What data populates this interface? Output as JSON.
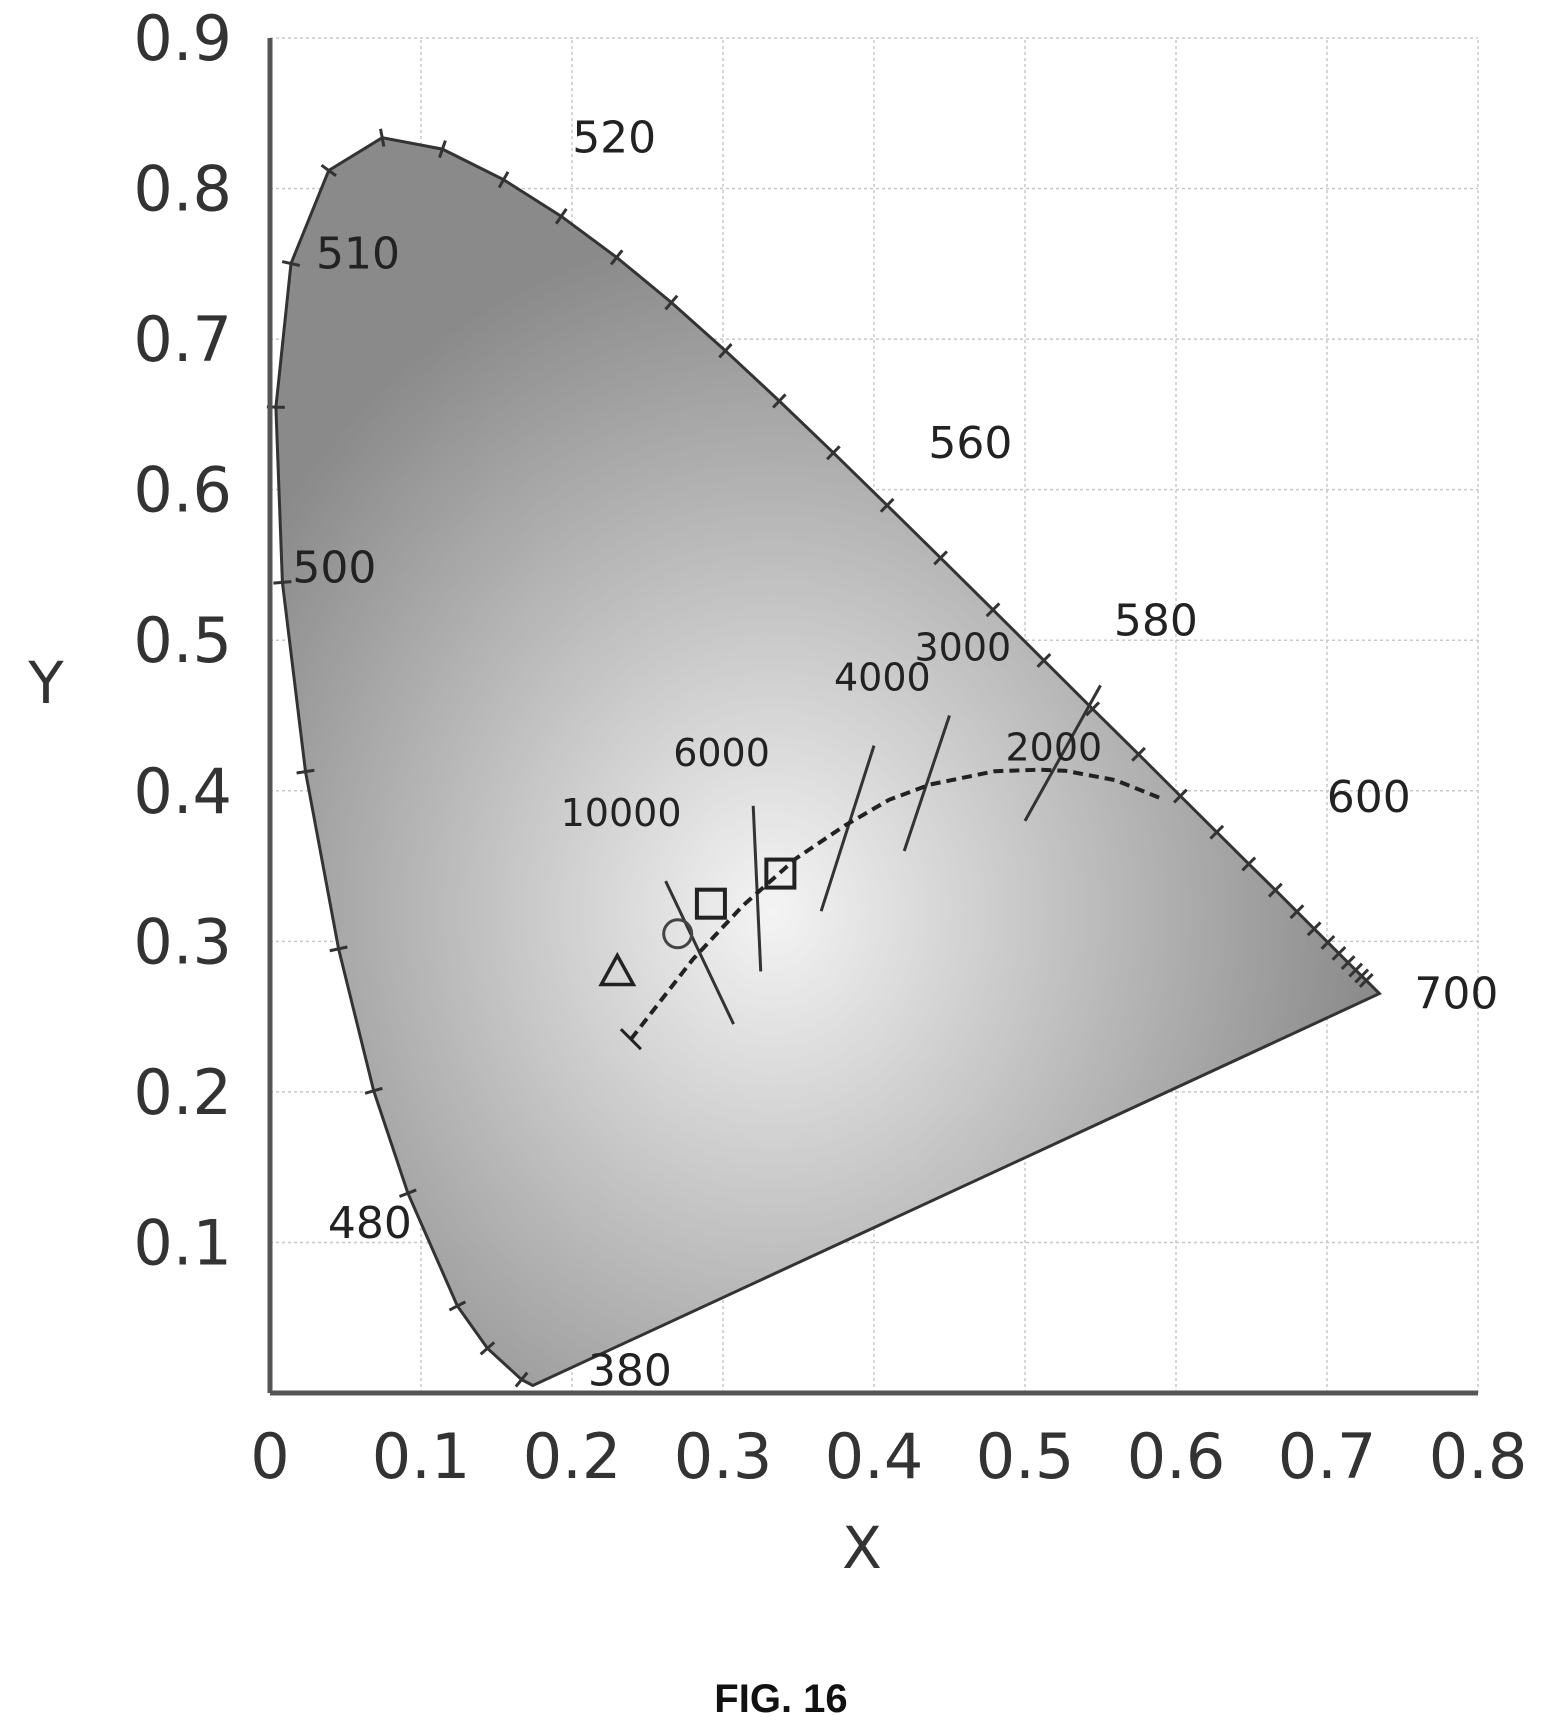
{
  "caption": "FIG. 16",
  "chart_data": {
    "type": "scatter",
    "title": "",
    "xlabel": "X",
    "ylabel": "Y",
    "xlim": [
      0,
      0.8
    ],
    "ylim": [
      0,
      0.9
    ],
    "xticks": [
      "0",
      "0.1",
      "0.2",
      "0.3",
      "0.4",
      "0.5",
      "0.6",
      "0.7",
      "0.8"
    ],
    "yticks": [
      "0.1",
      "0.2",
      "0.3",
      "0.4",
      "0.5",
      "0.6",
      "0.7",
      "0.8",
      "0.9"
    ],
    "grid": true,
    "spectral_locus": {
      "points": [
        [
          0.1741,
          0.005
        ],
        [
          0.1666,
          0.0089
        ],
        [
          0.144,
          0.0297
        ],
        [
          0.1241,
          0.0578
        ],
        [
          0.0913,
          0.1327
        ],
        [
          0.0687,
          0.2007
        ],
        [
          0.0454,
          0.295
        ],
        [
          0.0235,
          0.4127
        ],
        [
          0.0082,
          0.5384
        ],
        [
          0.0039,
          0.6548
        ],
        [
          0.0139,
          0.7502
        ],
        [
          0.0389,
          0.812
        ],
        [
          0.0743,
          0.8338
        ],
        [
          0.1142,
          0.8262
        ],
        [
          0.1547,
          0.8059
        ],
        [
          0.1929,
          0.7816
        ],
        [
          0.2296,
          0.7543
        ],
        [
          0.2658,
          0.7243
        ],
        [
          0.3016,
          0.6923
        ],
        [
          0.3373,
          0.6589
        ],
        [
          0.3731,
          0.6245
        ],
        [
          0.4087,
          0.5896
        ],
        [
          0.4441,
          0.5547
        ],
        [
          0.4788,
          0.5202
        ],
        [
          0.5125,
          0.4866
        ],
        [
          0.5448,
          0.4544
        ],
        [
          0.5752,
          0.4242
        ],
        [
          0.6029,
          0.3965
        ],
        [
          0.627,
          0.3725
        ],
        [
          0.6482,
          0.3514
        ],
        [
          0.6658,
          0.334
        ],
        [
          0.6801,
          0.3197
        ],
        [
          0.6915,
          0.3083
        ],
        [
          0.7006,
          0.2993
        ],
        [
          0.7079,
          0.292
        ],
        [
          0.714,
          0.2859
        ],
        [
          0.719,
          0.2809
        ],
        [
          0.723,
          0.277
        ],
        [
          0.726,
          0.274
        ],
        [
          0.7347,
          0.2653
        ]
      ],
      "wavelength_labels": [
        {
          "text": "520",
          "x": 0.0743,
          "y": 0.8338
        },
        {
          "text": "560",
          "x": 0.3731,
          "y": 0.6245
        },
        {
          "text": "580",
          "x": 0.5125,
          "y": 0.4866
        },
        {
          "text": "600",
          "x": 0.627,
          "y": 0.3725
        },
        {
          "text": "700",
          "x": 0.7347,
          "y": 0.2653
        },
        {
          "text": "510",
          "x": 0.0139,
          "y": 0.7502
        },
        {
          "text": "500",
          "x": 0.0082,
          "y": 0.5384
        },
        {
          "text": "480",
          "x": 0.0913,
          "y": 0.1327
        },
        {
          "text": "380",
          "x": 0.1741,
          "y": 0.005
        }
      ]
    },
    "planckian_locus": {
      "points": [
        [
          0.239,
          0.235
        ],
        [
          0.28,
          0.288
        ],
        [
          0.3131,
          0.3237
        ],
        [
          0.3484,
          0.3551
        ],
        [
          0.3805,
          0.3768
        ],
        [
          0.41,
          0.394
        ],
        [
          0.4369,
          0.4041
        ],
        [
          0.48,
          0.413
        ],
        [
          0.51,
          0.414
        ],
        [
          0.5267,
          0.4133
        ],
        [
          0.56,
          0.407
        ],
        [
          0.59,
          0.395
        ]
      ]
    },
    "isotemperature_lines": [
      {
        "label": "10000",
        "x": [
          0.262,
          0.307
        ],
        "y": [
          0.34,
          0.245
        ]
      },
      {
        "label": "6000",
        "x": [
          0.32,
          0.325
        ],
        "y": [
          0.39,
          0.28
        ]
      },
      {
        "label": "4000",
        "x": [
          0.365,
          0.4
        ],
        "y": [
          0.32,
          0.43
        ]
      },
      {
        "label": "3000",
        "x": [
          0.42,
          0.45
        ],
        "y": [
          0.36,
          0.45
        ]
      },
      {
        "label": "2000",
        "x": [
          0.5,
          0.55
        ],
        "y": [
          0.38,
          0.47
        ]
      }
    ],
    "markers": [
      {
        "shape": "triangle",
        "x": 0.23,
        "y": 0.28
      },
      {
        "shape": "square",
        "x": 0.292,
        "y": 0.325
      },
      {
        "shape": "circle",
        "x": 0.27,
        "y": 0.305
      },
      {
        "shape": "square",
        "x": 0.338,
        "y": 0.345
      }
    ]
  }
}
